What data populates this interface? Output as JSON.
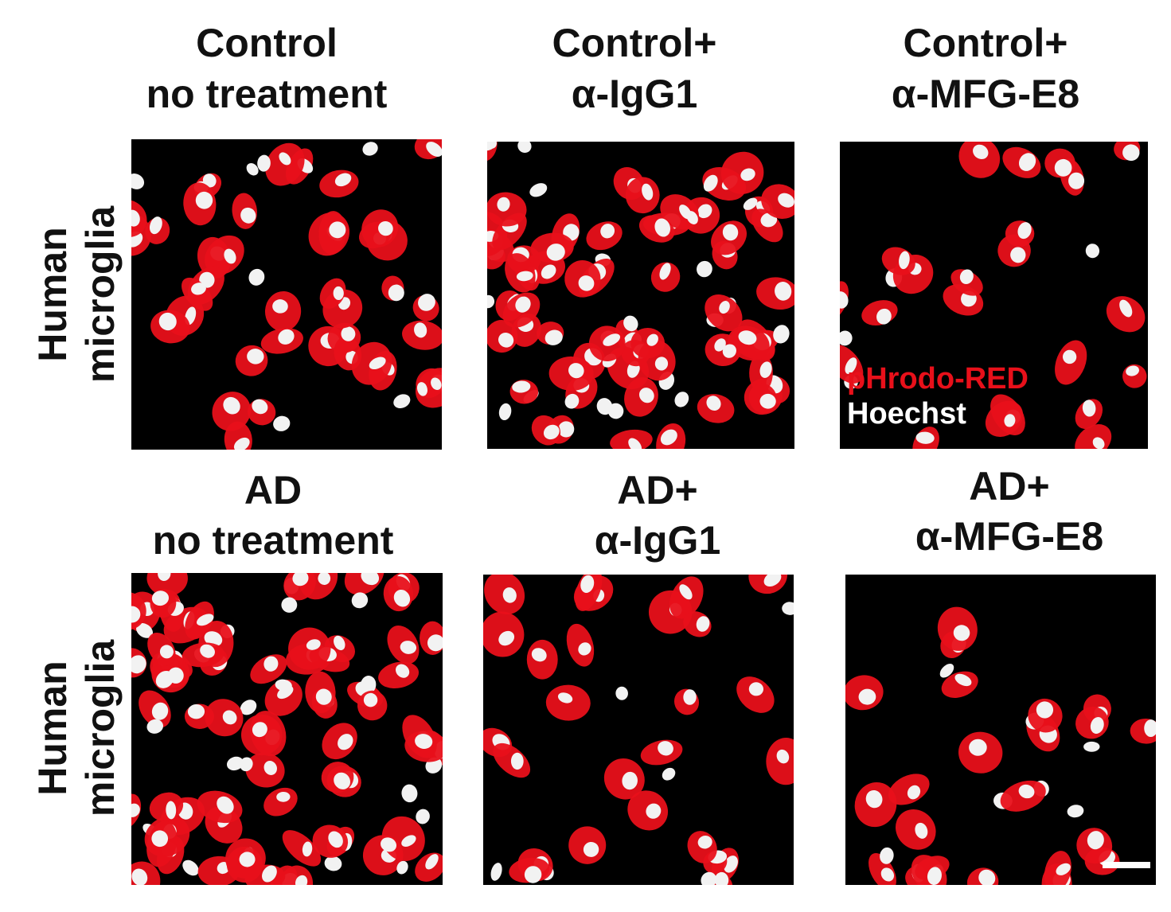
{
  "panels": [
    {
      "title": [
        "Control",
        "no treatment"
      ]
    },
    {
      "title": [
        "Control+",
        "α-IgG1"
      ]
    },
    {
      "title": [
        "Control+",
        "α-MFG-E8"
      ]
    },
    {
      "title": [
        "AD",
        "no treatment"
      ]
    },
    {
      "title": [
        "AD+",
        "α-IgG1"
      ]
    },
    {
      "title": [
        "AD+",
        "α-MFG-E8"
      ]
    }
  ],
  "row_labels": [
    [
      "Human",
      "microglia"
    ],
    [
      "Human",
      "microglia"
    ]
  ],
  "legend": {
    "stain_red": "pHrodo-RED",
    "stain_white": "Hoechst"
  }
}
